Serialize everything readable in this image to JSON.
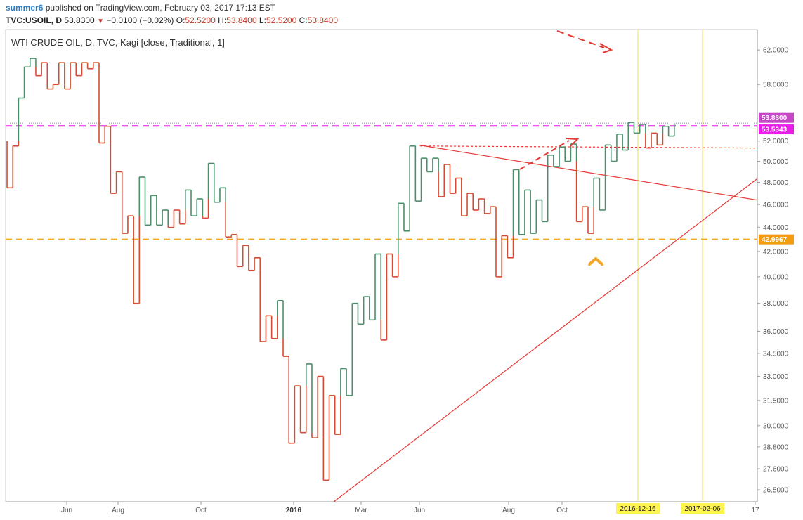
{
  "header": {
    "author": "summer6",
    "published_text": "published on TradingView.com, February 03, 2017 17:13 EST",
    "symbol": "TVC:USOIL, D",
    "last": "53.8300",
    "change": "−0.0100 (−0.02%)",
    "o_label": "O:",
    "o": "52.5200",
    "h_label": "H:",
    "h": "53.8400",
    "l_label": "L:",
    "l": "52.5200",
    "c_label": "C:",
    "c": "53.8400"
  },
  "colors": {
    "up": "#4a8f6a",
    "down": "#d64b33",
    "magenta": "#e81ee8",
    "orange": "#f5a623",
    "trend": "#e53935",
    "vline": "#f5e663"
  },
  "chart_data": {
    "type": "line",
    "subtype": "kagi",
    "title": "WTI CRUDE OIL, D, TVC, Kagi [close, Traditional, 1]",
    "scale": "log",
    "ylim": [
      25.9,
      64.5
    ],
    "y_ticks": [
      "62.0000",
      "58.0000",
      "52.0000",
      "50.0000",
      "48.0000",
      "46.0000",
      "44.0000",
      "42.0000",
      "40.0000",
      "38.0000",
      "36.0000",
      "34.5000",
      "33.0000",
      "31.5000",
      "30.0000",
      "28.8000",
      "27.6000",
      "26.5000"
    ],
    "x_labels": [
      {
        "label": "Jun",
        "bold": false
      },
      {
        "label": "Aug",
        "bold": false
      },
      {
        "label": "Oct",
        "bold": false
      },
      {
        "label": "2016",
        "bold": true
      },
      {
        "label": "Mar",
        "bold": false
      },
      {
        "label": "Jun",
        "bold": false
      },
      {
        "label": "Aug",
        "bold": false
      },
      {
        "label": "Oct",
        "bold": false
      },
      {
        "label": "17",
        "bold": false
      }
    ],
    "kagi_points": [
      52.0,
      47.5,
      51.5,
      56.5,
      60.0,
      61.0,
      59.0,
      60.5,
      57.5,
      58.0,
      60.5,
      57.5,
      60.5,
      59.0,
      60.5,
      59.8,
      60.5,
      51.8,
      53.5,
      47.0,
      49.0,
      43.5,
      45.0,
      38.0,
      48.5,
      44.2,
      46.8,
      44.2,
      45.5,
      44.0,
      45.5,
      44.3,
      47.3,
      45.0,
      46.5,
      44.8,
      49.8,
      46.2,
      47.5,
      43.2,
      43.4,
      40.8,
      42.5,
      40.5,
      41.5,
      35.3,
      37.1,
      35.5,
      38.2,
      34.3,
      29.0,
      32.4,
      29.6,
      33.8,
      29.3,
      33.0,
      27.0,
      31.8,
      29.5,
      33.5,
      31.8,
      38.0,
      36.5,
      38.5,
      36.8,
      41.8,
      35.4,
      41.8,
      40.0,
      46.1,
      43.7,
      51.5,
      46.3,
      50.3,
      49.0,
      50.3,
      46.7,
      49.7,
      47.0,
      48.4,
      45.0,
      47.0,
      45.5,
      46.5,
      45.2,
      45.8,
      40.0,
      43.3,
      41.5,
      49.2,
      43.4,
      47.3,
      43.5,
      46.4,
      44.5,
      50.6,
      49.5,
      51.4,
      50.0,
      51.7,
      44.5,
      45.8,
      43.5,
      48.4,
      45.5,
      51.6,
      50.0,
      52.7,
      51.1,
      53.9,
      52.8,
      53.7,
      51.3,
      52.8,
      51.6,
      53.5,
      52.5,
      53.83
    ],
    "support_levels": [
      {
        "label": "53.5343",
        "value": 53.5343,
        "color": "#e81ee8",
        "style": "dashed"
      },
      {
        "label": "42.9967",
        "value": 42.9967,
        "color": "#f5a623",
        "style": "dashed"
      }
    ],
    "last_price": {
      "label": "53.8300",
      "value": 53.83
    },
    "dotted_level": {
      "value": 51.3
    },
    "date_markers": [
      {
        "label": "2016-12-16"
      },
      {
        "label": "2017-02-06"
      }
    ],
    "trendlines": [
      {
        "from": [
          596,
          51.6
        ],
        "to": [
          1077,
          46.4
        ]
      },
      {
        "from": [
          475,
          25.9
        ],
        "to": [
          1077,
          48.3
        ]
      },
      {
        "from": [
          598,
          51.5
        ],
        "to": [
          1077,
          51.3
        ]
      }
    ]
  }
}
